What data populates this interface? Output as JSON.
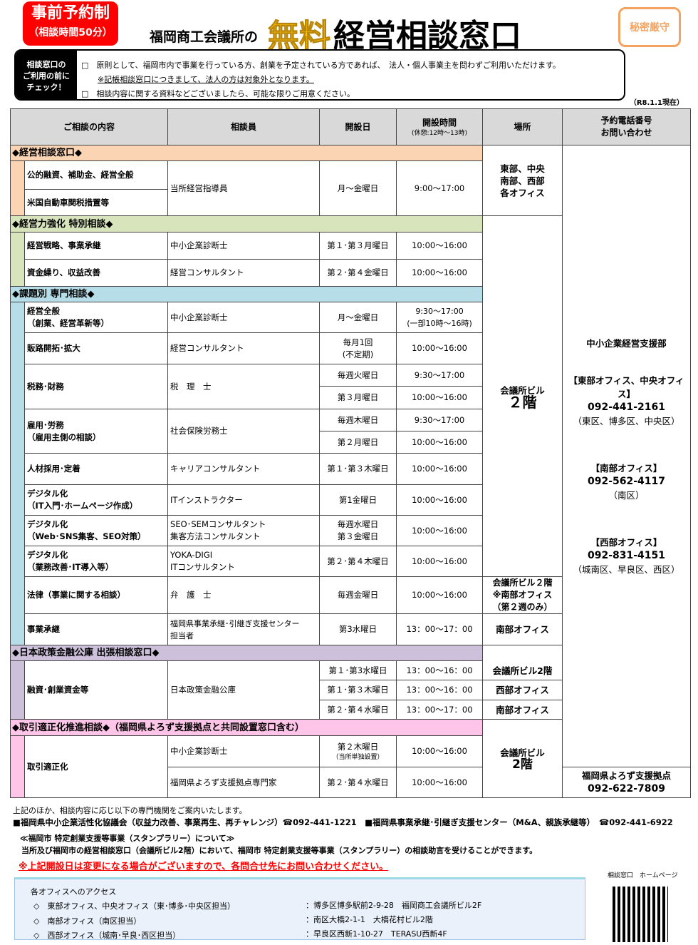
{
  "header": {
    "badge_line1": "事前予約制",
    "badge_line2": "（相談時間50分）",
    "subtitle": "福岡商工会議所の",
    "title_highlight": "無料",
    "title_main": "経営相談窓口",
    "confidential": "秘密厳守"
  },
  "check": {
    "label": "相談窓口の\nご利用の前に\nチェック！",
    "item1": "□　原則として、福岡市内で事業を行っている方、創業を予定されている方であれば、　法人・個人事業主を問わずご利用いただけます。",
    "note": "※記帳相談窓口につきまして、法人の方は対象外となります。",
    "item2": "□　相談内容に関する資料などございましたら、可能な限りご用意ください。",
    "date": "（R8.1.1現在）"
  },
  "table": {
    "headers": {
      "content": "ご相談の内容",
      "advisor": "相談員",
      "day": "開設日",
      "time": "開設時間",
      "time_note": "(休憩:12時～13時)",
      "place": "場所",
      "phone": "予約電話番号\nお問い合わせ"
    },
    "sec1": {
      "title": "◆経営相談窓口◆",
      "r1": "公的融資、補助金、経営全般",
      "r2": "米国自動車関税措置等",
      "advisor": "当所経営指導員",
      "day": "月～金曜日",
      "time": "9:00～17:00",
      "place": "東部、中央\n南部、西部\n各オフィス"
    },
    "sec2": {
      "title": "◆経営力強化 特別相談◆",
      "rows": [
        {
          "content": "経営戦略、事業承継",
          "advisor": "中小企業診断士",
          "day": "第１･第３月曜日",
          "time": "10:00～16:00"
        },
        {
          "content": "資金繰り、収益改善",
          "advisor": "経営コンサルタント",
          "day": "第２･第４金曜日",
          "time": "10:00～16:00"
        }
      ],
      "place1": "会議所ビル",
      "place2": "２階"
    },
    "sec3": {
      "title": "◆課題別 専門相談◆",
      "rows": [
        {
          "content": "経営全般\n（創業、経営革新等）",
          "advisor": "中小企業診断士",
          "day": "月～金曜日",
          "time": "9:30～17:00\n(一部10時～16時)"
        },
        {
          "content": "販路開拓･拡大",
          "advisor": "経営コンサルタント",
          "day": "毎月1回\n(不定期)",
          "time": "10:00～16:00"
        },
        {
          "content": "税務･財務",
          "advisor": "税　理　士",
          "day": "毎週火曜日",
          "time": "9:30～17:00",
          "day2": "第３月曜日",
          "time2": "10:00～16:00"
        },
        {
          "content": "雇用･労務\n（雇用主側の相談）",
          "advisor": "社会保険労務士",
          "day": "毎週木曜日",
          "time": "9:30～17:00",
          "day2": "第２月曜日",
          "time2": "10:00～16:00"
        },
        {
          "content": "人材採用･定着",
          "advisor": "キャリアコンサルタント",
          "day": "第１･第３木曜日",
          "time": "10:00～16:00"
        },
        {
          "content": "デジタル化\n（IT入門･ホームページ作成）",
          "advisor": "ITインストラクター",
          "day": "第1金曜日",
          "time": "10:00～16:00"
        },
        {
          "content": "デジタル化\n（Web･SNS集客、SEO対策）",
          "advisor": "SEO･SEMコンサルタント\n集客方法コンサルタント",
          "day": "毎週水曜日\n第３金曜日",
          "time": "10:00～16:00"
        },
        {
          "content": "デジタル化\n（業務改善･IT導入等）",
          "advisor": "YOKA-DIGI\nITコンサルタント",
          "day": "第２･第４木曜日",
          "time": "10:00～16:00"
        },
        {
          "content": "法律（事業に関する相談）",
          "advisor": "弁　護　士",
          "day": "毎週金曜日",
          "time": "10:00～16:00",
          "place": "会議所ビル２階\n※南部オフィス\n（第２週のみ）"
        },
        {
          "content": "事業承継",
          "advisor": "福岡県事業承継･引継ぎ支援センター\n担当者",
          "day": "第3水曜日",
          "time": "13：00～17：00",
          "place": "南部オフィス"
        }
      ]
    },
    "sec4": {
      "title": "◆日本政策金融公庫 出張相談窓口◆",
      "content": "融資･創業資金等",
      "advisor": "日本政策金融公庫",
      "rows": [
        {
          "day": "第１･第3水曜日",
          "time": "13：00～16：00",
          "place": "会議所ビル2階"
        },
        {
          "day": "第１･第３木曜日",
          "time": "13：00～16：00",
          "place": "西部オフィス"
        },
        {
          "day": "第２･第４水曜日",
          "time": "13：00～17：00",
          "place": "南部オフィス"
        }
      ]
    },
    "sec5": {
      "title": "◆取引適正化推進相談◆（福岡県よろず支援拠点と共同設置窓口含む）",
      "content": "取引適正化",
      "rows": [
        {
          "advisor": "中小企業診断士",
          "day": "第２木曜日",
          "day_note": "（当所単独設置）",
          "time": "10:00～16:00"
        },
        {
          "advisor": "福岡県よろず支援拠点専門家",
          "day": "第２･第４水曜日",
          "time": "10:00～16:00"
        }
      ],
      "place1": "会議所ビル",
      "place2": "2階"
    },
    "phone": {
      "dept": "中小企業経営支援部",
      "east_label": "【東部オフィス、中央オフィス】",
      "east_num": "092-441-2161",
      "east_area": "（東区、博多区、中央区）",
      "south_label": "【南部オフィス】",
      "south_num": "092-562-4117",
      "south_area": "（南区）",
      "west_label": "【西部オフィス】",
      "west_num": "092-831-4151",
      "west_area": "（城南区、早良区、西区）",
      "yorozu_label": "福岡県よろず支援拠点",
      "yorozu_num": "092-622-7809"
    }
  },
  "footer": {
    "intro": "上記のほか、相談内容に応じ以下の専門機関をご案内いたします。",
    "orgs": "■福岡県中小企業活性化協議会（収益力改善、事業再生、再チャレンジ）☎092-441-1221　■福岡県事業承継･引継ぎ支援センター（M&A、親族承継等）　☎092-441-6922",
    "stamp_title": "≪福岡市 特定創業支援等事業（スタンプラリー）について≫",
    "stamp_body": "当所及び福岡市の経営相談窓口（会議所ビル2階）において、福岡市 特定創業支援等事業（スタンプラリー）の相談助言を受けることができます。",
    "warning": "※上記開設日は変更になる場合がございますので、各問合せ先にお問い合わせください。",
    "qr_label": "相談窓口　ホームページ"
  },
  "access": {
    "title": "各オフィスへのアクセス",
    "rows": [
      {
        "name": "◇　東部オフィス、中央オフィス（東･博多･中央区担当）",
        "addr": "：博多区博多駅前2-9-28　福岡商工会議所ビル2F"
      },
      {
        "name": "◇　南部オフィス（南区担当）",
        "addr": "：南区大橋2-1-1　大橋花村ビル2階"
      },
      {
        "name": "◇　西部オフィス（城南･早良･西区担当）",
        "addr": "：早良区西新1-10-27　TERASU西新4F"
      }
    ]
  },
  "colors": {
    "badge": "#ff0000",
    "highlight": "#ffc000",
    "sec1": "#fbd4b4",
    "sec2": "#ebf1de",
    "sec3": "#b7dee8",
    "sec4": "#ccc0da",
    "sec5": "#ffc5e8",
    "warning": "#ff0000"
  }
}
